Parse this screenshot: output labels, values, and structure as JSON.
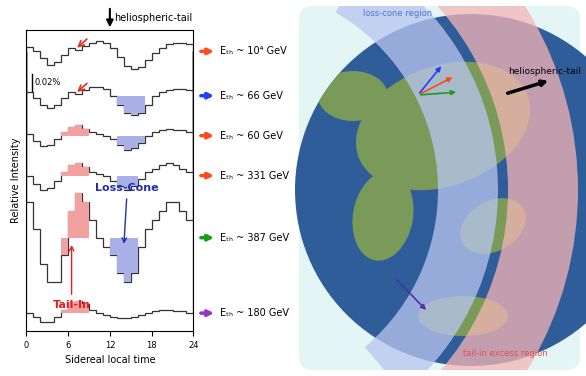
{
  "chart_data": {
    "type": "step",
    "title": "heliospheric-tail",
    "x_label": "Sidereal local time",
    "y_label": "Relative Intensity",
    "xlim": [
      0,
      24
    ],
    "xticks": [
      0,
      6,
      12,
      18,
      24
    ],
    "tick_labels": "x",
    "bins": [
      0,
      1,
      2,
      3,
      4,
      5,
      6,
      7,
      8,
      9,
      10,
      11,
      12,
      13,
      14,
      15,
      16,
      17,
      18,
      19,
      20,
      21,
      22,
      23,
      24
    ],
    "scale_bar": {
      "value": 0.02,
      "label": "0.02%"
    },
    "tail_in_label": "Tail-In",
    "loss_cone_label": "Loss-Cone",
    "series": [
      {
        "name": "Eₜₕ ~ 10⁴ GeV",
        "color": "#ff4a1c",
        "arrow_hour": 7,
        "values": [
          0.005,
          0.0,
          -0.008,
          -0.015,
          -0.012,
          -0.004,
          0.004,
          0.002,
          0.006,
          0.01,
          0.012,
          0.01,
          0.004,
          -0.006,
          -0.016,
          -0.02,
          -0.018,
          -0.01,
          -0.002,
          0.004,
          0.008,
          0.01,
          0.01,
          0.008
        ]
      },
      {
        "name": "Eₜₕ ~ 66 GeV",
        "color": "#2040ff",
        "arrow_hour": 7,
        "loss_cone": [
          13,
          17
        ],
        "values": [
          0.004,
          -0.002,
          -0.01,
          -0.014,
          -0.01,
          -0.002,
          0.004,
          0.002,
          0.006,
          0.01,
          0.01,
          0.008,
          0.0,
          -0.01,
          -0.02,
          -0.022,
          -0.02,
          -0.01,
          0.0,
          0.004,
          0.006,
          0.008,
          0.008,
          0.006
        ]
      },
      {
        "name": "Eₜₕ ~ 60 GeV",
        "color": "#ff4a1c",
        "tail_in": [
          5,
          9
        ],
        "loss_cone": [
          13,
          17
        ],
        "values": [
          0.002,
          -0.006,
          -0.012,
          -0.01,
          -0.004,
          0.004,
          0.01,
          0.012,
          0.008,
          0.004,
          0.002,
          0.0,
          -0.004,
          -0.01,
          -0.016,
          -0.014,
          -0.008,
          0.0,
          0.004,
          0.006,
          0.008,
          0.006,
          0.006,
          0.004
        ]
      },
      {
        "name": "Eₜₕ ~ 331 GeV",
        "color": "#ff4a1c",
        "tail_in": [
          5,
          9
        ],
        "loss_cone": [
          13,
          16
        ],
        "values": [
          0.0,
          -0.01,
          -0.016,
          -0.014,
          -0.006,
          0.004,
          0.012,
          0.014,
          0.01,
          0.004,
          0.002,
          0.0,
          -0.006,
          -0.012,
          -0.016,
          -0.012,
          -0.004,
          0.004,
          0.008,
          0.012,
          0.014,
          0.012,
          0.008,
          0.004
        ]
      },
      {
        "name": "Eₜₕ ~ 387 GeV",
        "color": "#1a9e1a",
        "tail_in": [
          5,
          9
        ],
        "loss_cone": [
          12,
          16
        ],
        "values": [
          0.04,
          0.01,
          -0.03,
          -0.05,
          -0.05,
          -0.02,
          0.03,
          0.05,
          0.04,
          0.02,
          0.0,
          -0.01,
          -0.02,
          -0.04,
          -0.05,
          -0.04,
          -0.01,
          0.01,
          0.02,
          0.03,
          0.04,
          0.04,
          0.03,
          0.02
        ]
      },
      {
        "name": "Eₜₕ ~ 180 GeV",
        "color": "#9933cc",
        "tail_in": [
          5,
          9
        ],
        "values": [
          0.0,
          -0.004,
          -0.01,
          -0.01,
          -0.004,
          0.004,
          0.012,
          0.014,
          0.01,
          0.004,
          0.0,
          -0.002,
          -0.004,
          -0.006,
          -0.006,
          -0.004,
          -0.002,
          0.0,
          0.002,
          0.004,
          0.004,
          0.002,
          0.002,
          0.0
        ]
      }
    ]
  },
  "diagram": {
    "loss_cone_region": "loss-cone region",
    "tail_in_region": "tail-in excess region",
    "heliospheric_tail": "heliospheric-tail"
  }
}
